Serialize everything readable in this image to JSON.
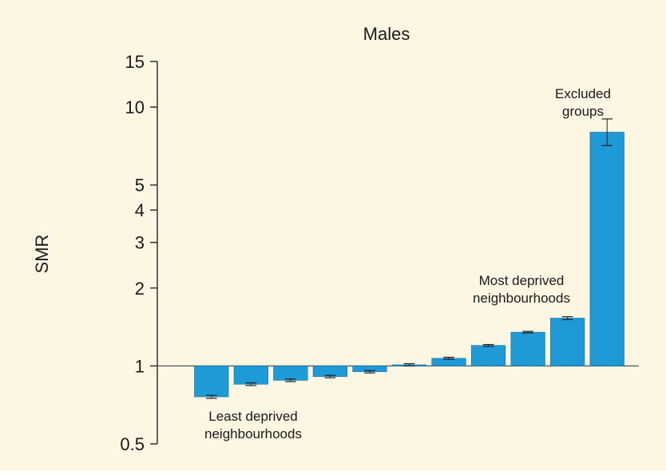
{
  "chart_data": {
    "type": "bar",
    "title": "Males",
    "xlabel": "",
    "ylabel": "SMR",
    "y_scale": "log",
    "baseline": 1,
    "ylim": [
      0.5,
      15
    ],
    "yticks": [
      0.5,
      1,
      2,
      3,
      4,
      5,
      10,
      15
    ],
    "grid": false,
    "background": "#fdf6e3",
    "bar_color": "#1e9ad6",
    "series": [
      {
        "values": [
          0.76,
          0.85,
          0.88,
          0.91,
          0.95,
          1.01,
          1.07,
          1.2,
          1.35,
          1.53,
          8.0
        ],
        "error_low": [
          0.75,
          0.84,
          0.87,
          0.9,
          0.94,
          1.0,
          1.06,
          1.19,
          1.34,
          1.51,
          7.1
        ],
        "error_high": [
          0.77,
          0.86,
          0.89,
          0.92,
          0.96,
          1.02,
          1.08,
          1.21,
          1.36,
          1.55,
          9.0
        ]
      }
    ],
    "annotations": [
      {
        "lines": [
          "Least deprived",
          "neighbourhoods"
        ]
      },
      {
        "lines": [
          "Most deprived",
          "neighbourhoods"
        ]
      },
      {
        "lines": [
          "Excluded",
          "groups"
        ]
      }
    ]
  }
}
